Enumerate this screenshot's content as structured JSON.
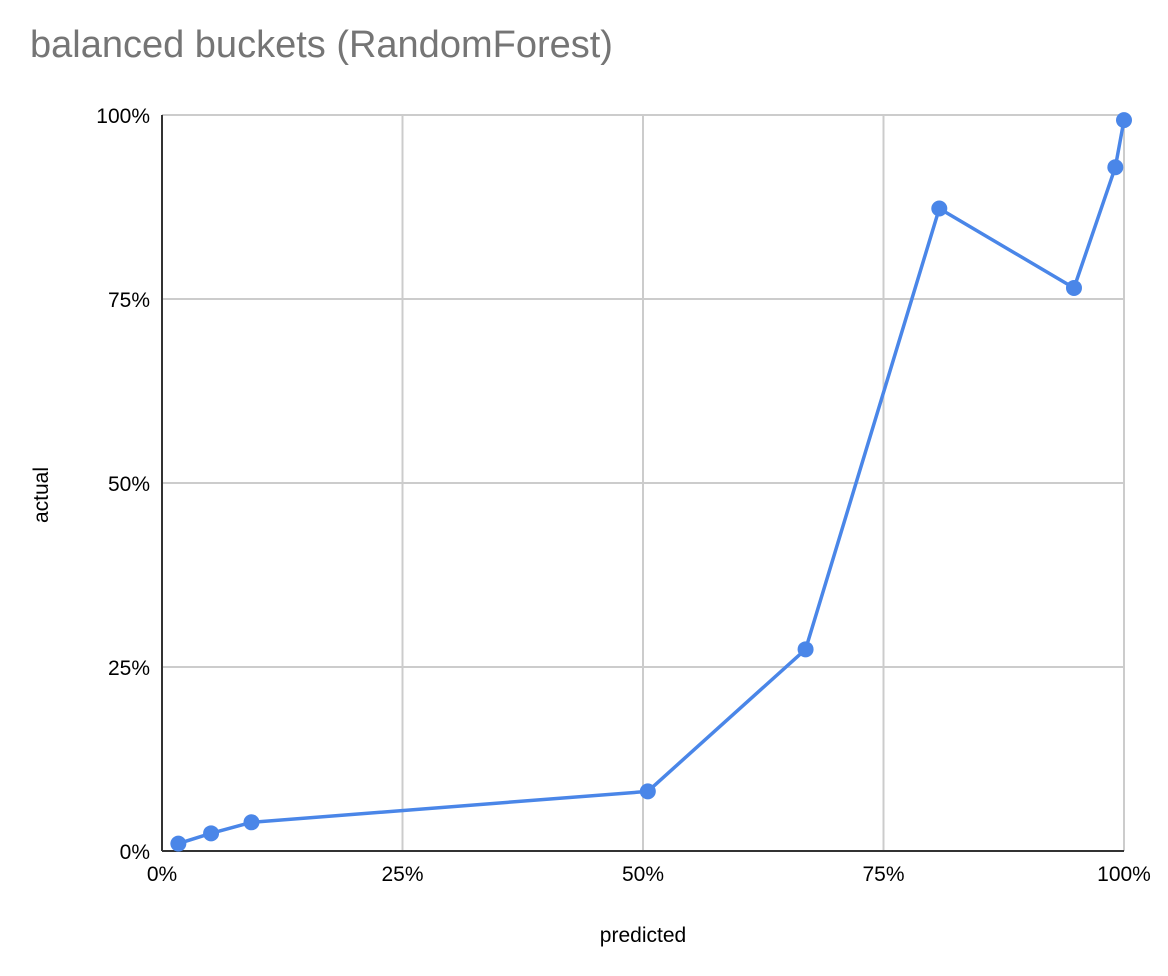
{
  "chart_data": {
    "type": "line",
    "title": "balanced buckets (RandomForest)",
    "xlabel": "predicted",
    "ylabel": "actual",
    "xlim": [
      0,
      1
    ],
    "ylim": [
      0,
      1
    ],
    "x_ticks": [
      "0%",
      "25%",
      "50%",
      "75%",
      "100%"
    ],
    "y_ticks": [
      "0%",
      "25%",
      "50%",
      "75%",
      "100%"
    ],
    "grid": true,
    "series": [
      {
        "color": "#4a86e8",
        "x": [
          0.017,
          0.051,
          0.093,
          0.505,
          0.669,
          0.808,
          0.948,
          0.991,
          1.0
        ],
        "y": [
          0.01,
          0.024,
          0.039,
          0.081,
          0.274,
          0.873,
          0.765,
          0.929,
          0.993
        ]
      }
    ]
  }
}
